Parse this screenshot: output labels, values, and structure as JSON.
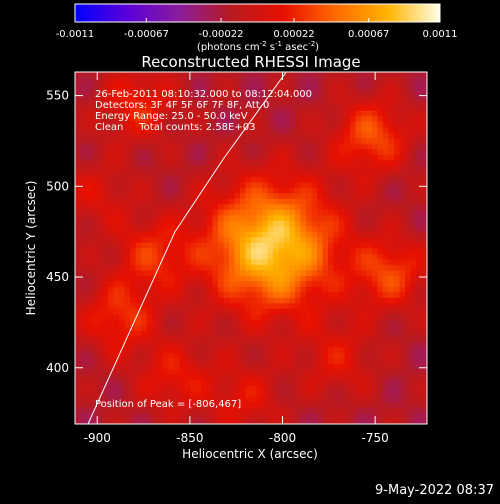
{
  "colorbar": {
    "tick_labels": [
      "-0.0011",
      "-0.00067",
      "-0.00022",
      "0.00022",
      "0.00067",
      "0.0011"
    ],
    "tick_values": [
      -0.0011,
      -0.00067,
      -0.00022,
      0.00022,
      0.00067,
      0.0011
    ],
    "range": [
      -0.0011,
      0.0011
    ],
    "units_label": "(photons cm",
    "units_exp1": "-2",
    "units_mid": " s",
    "units_exp2": "-1",
    "units_end": " asec",
    "units_exp3": "-2",
    "units_close": ")",
    "colors": [
      "#0000ff",
      "#5a00d8",
      "#8a1c9c",
      "#b81a20",
      "#e81000",
      "#ff6a00",
      "#ffb400",
      "#ffffe8"
    ]
  },
  "annotations": {
    "time_range": "26-Feb-2011 08:10:32.000 to 08:12:04.000",
    "detectors": "Detectors: 3F 4F 5F 6F 7F 8F, Att 0",
    "energy": "Energy Range: 25.0 - 50.0 keV",
    "clean": "Clean     Total counts: 2.58E+03",
    "peak": "Position of Peak = [-806,467]"
  },
  "footer": {
    "date": "9-May-2022 08:37"
  },
  "chart_data": {
    "type": "heatmap",
    "title": "Reconstructed RHESSI Image",
    "xlabel": "Heliocentric X (arcsec)",
    "ylabel": "Heliocentric Y (arcsec)",
    "xlim": [
      -912,
      -722
    ],
    "ylim": [
      369,
      563
    ],
    "x_ticks": [
      -900,
      -850,
      -800,
      -750
    ],
    "x_tick_labels": [
      "-900",
      "-850",
      "-800",
      "-750"
    ],
    "y_ticks": [
      400,
      450,
      500,
      550
    ],
    "y_tick_labels": [
      "400",
      "450",
      "500",
      "550"
    ],
    "peak_position": [
      -806,
      467
    ],
    "limb_line": [
      [
        -905,
        369
      ],
      [
        -878,
        430
      ],
      [
        -858,
        475
      ],
      [
        -832,
        515
      ],
      [
        -798,
        563
      ]
    ],
    "sources": [
      {
        "x": -806,
        "y": 467,
        "intensity": 0.0011
      },
      {
        "x": -752,
        "y": 528,
        "intensity": 0.00055
      },
      {
        "x": -742,
        "y": 452,
        "intensity": 0.0005
      },
      {
        "x": -888,
        "y": 428,
        "intensity": 0.00045
      },
      {
        "x": -878,
        "y": 545,
        "intensity": 0.0004
      },
      {
        "x": -870,
        "y": 462,
        "intensity": 0.00042
      },
      {
        "x": -858,
        "y": 395,
        "intensity": 0.00035
      },
      {
        "x": -820,
        "y": 383,
        "intensity": 0.0003
      },
      {
        "x": -770,
        "y": 405,
        "intensity": 0.0003
      },
      {
        "x": -900,
        "y": 495,
        "intensity": 0.00025
      }
    ],
    "grid": false
  }
}
